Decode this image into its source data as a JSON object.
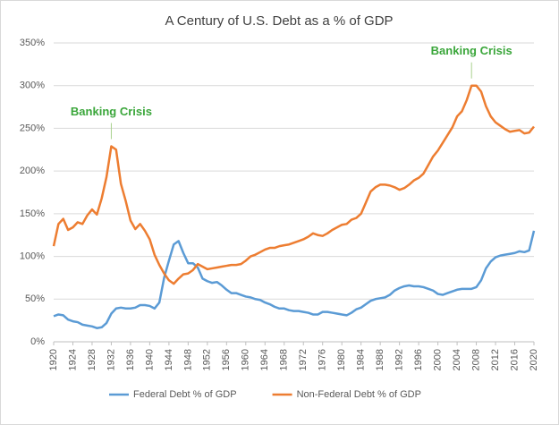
{
  "chart_data": {
    "type": "line",
    "title": "A Century of U.S. Debt as a % of GDP",
    "x": [
      1920,
      1921,
      1922,
      1923,
      1924,
      1925,
      1926,
      1927,
      1928,
      1929,
      1930,
      1931,
      1932,
      1933,
      1934,
      1935,
      1936,
      1937,
      1938,
      1939,
      1940,
      1941,
      1942,
      1943,
      1944,
      1945,
      1946,
      1947,
      1948,
      1949,
      1950,
      1951,
      1952,
      1953,
      1954,
      1955,
      1956,
      1957,
      1958,
      1959,
      1960,
      1961,
      1962,
      1963,
      1964,
      1965,
      1966,
      1967,
      1968,
      1969,
      1970,
      1971,
      1972,
      1973,
      1974,
      1975,
      1976,
      1977,
      1978,
      1979,
      1980,
      1981,
      1982,
      1983,
      1984,
      1985,
      1986,
      1987,
      1988,
      1989,
      1990,
      1991,
      1992,
      1993,
      1994,
      1995,
      1996,
      1997,
      1998,
      1999,
      2000,
      2001,
      2002,
      2003,
      2004,
      2005,
      2006,
      2007,
      2008,
      2009,
      2010,
      2011,
      2012,
      2013,
      2014,
      2015,
      2016,
      2017,
      2018,
      2019,
      2020
    ],
    "series": [
      {
        "name": "Federal Debt % of GDP",
        "color": "#5b9bd5",
        "values": [
          30,
          32,
          31,
          26,
          24,
          23,
          20,
          19,
          18,
          16,
          17,
          22,
          33,
          39,
          40,
          39,
          39,
          40,
          43,
          43,
          42,
          39,
          46,
          75,
          95,
          114,
          118,
          104,
          92,
          92,
          87,
          74,
          71,
          69,
          70,
          66,
          61,
          57,
          57,
          55,
          53,
          52,
          50,
          49,
          46,
          44,
          41,
          39,
          39,
          37,
          36,
          36,
          35,
          34,
          32,
          32,
          35,
          35,
          34,
          33,
          32,
          31,
          34,
          38,
          40,
          44,
          48,
          50,
          51,
          52,
          55,
          60,
          63,
          65,
          66,
          65,
          65,
          64,
          62,
          60,
          56,
          55,
          57,
          59,
          61,
          62,
          62,
          62,
          64,
          72,
          86,
          94,
          99,
          101,
          102,
          103,
          104,
          106,
          105,
          107,
          130
        ]
      },
      {
        "name": "Non-Federal Debt % of GDP",
        "color": "#ed7d31",
        "values": [
          112,
          138,
          144,
          131,
          134,
          140,
          138,
          148,
          155,
          149,
          168,
          193,
          229,
          225,
          185,
          165,
          142,
          132,
          138,
          130,
          120,
          102,
          90,
          80,
          72,
          68,
          74,
          79,
          80,
          84,
          91,
          88,
          85,
          86,
          87,
          88,
          89,
          90,
          90,
          91,
          95,
          100,
          102,
          105,
          108,
          110,
          110,
          112,
          113,
          114,
          116,
          118,
          120,
          123,
          127,
          125,
          124,
          127,
          131,
          134,
          137,
          138,
          143,
          145,
          150,
          163,
          176,
          181,
          184,
          184,
          183,
          181,
          178,
          180,
          184,
          189,
          192,
          197,
          207,
          217,
          224,
          233,
          242,
          251,
          264,
          270,
          283,
          300,
          300,
          293,
          276,
          264,
          257,
          253,
          249,
          246,
          247,
          248,
          244,
          245,
          252
        ]
      }
    ],
    "annotations": [
      {
        "text": "Banking Crisis",
        "x": 1932
      },
      {
        "text": "Banking Crisis",
        "x": 2007
      }
    ],
    "xlim": [
      1920,
      2020
    ],
    "xticks": [
      1920,
      1924,
      1928,
      1932,
      1936,
      1940,
      1944,
      1948,
      1952,
      1956,
      1960,
      1964,
      1968,
      1972,
      1976,
      1980,
      1984,
      1988,
      1992,
      1996,
      2000,
      2004,
      2008,
      2012,
      2016,
      2020
    ],
    "ylim": [
      0,
      350
    ],
    "yticks": [
      {
        "value": 0,
        "label": "0%"
      },
      {
        "value": 50,
        "label": "50%"
      },
      {
        "value": 100,
        "label": "100%"
      },
      {
        "value": 150,
        "label": "150%"
      },
      {
        "value": 200,
        "label": "200%"
      },
      {
        "value": 250,
        "label": "250%"
      },
      {
        "value": 300,
        "label": "300%"
      },
      {
        "value": 350,
        "label": "350%"
      }
    ],
    "grid": true,
    "legend": "bottom",
    "annotation_color": "#3aa63a"
  }
}
